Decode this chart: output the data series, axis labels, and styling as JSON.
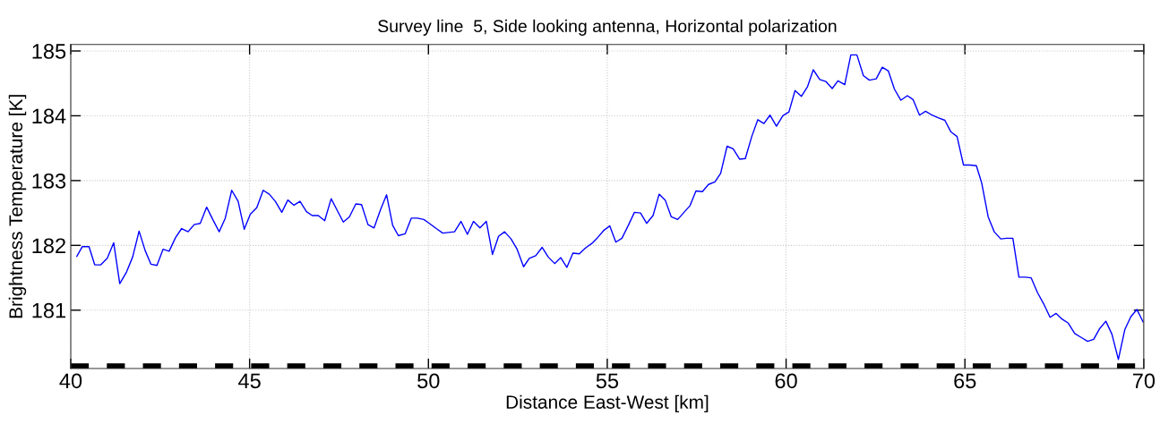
{
  "chart_data": {
    "type": "line",
    "title": "Survey line  5, Side looking antenna, Horizontal polarization",
    "xlabel": "Distance East-West [km]",
    "ylabel": "Brightness Temperature [K]",
    "xlim": [
      40,
      70
    ],
    "ylim": [
      180.1,
      185.1
    ],
    "xticks": [
      40,
      45,
      50,
      55,
      60,
      65,
      70
    ],
    "yticks": [
      181,
      182,
      183,
      184,
      185
    ],
    "grid": true,
    "marker": "none",
    "line_style": "solid",
    "ref_lines": [
      {
        "axis": "y",
        "value": 180.13,
        "color": "#000000",
        "line_style": "dashed"
      }
    ],
    "series": [
      {
        "color": "#0000ff",
        "x": [
          40.17,
          40.32,
          40.51,
          40.67,
          40.84,
          41.02,
          41.2,
          41.37,
          41.56,
          41.73,
          41.91,
          42.08,
          42.24,
          42.41,
          42.58,
          42.75,
          42.93,
          43.1,
          43.28,
          43.45,
          43.62,
          43.8,
          43.97,
          44.15,
          44.32,
          44.5,
          44.68,
          44.85,
          45.02,
          45.2,
          45.38,
          45.55,
          45.72,
          45.9,
          46.07,
          46.24,
          46.41,
          46.59,
          46.75,
          46.92,
          47.1,
          47.28,
          47.45,
          47.62,
          47.79,
          47.97,
          48.13,
          48.31,
          48.48,
          48.66,
          48.83,
          49.0,
          49.16,
          49.35,
          49.52,
          49.69,
          49.87,
          50.0,
          50.22,
          50.4,
          50.73,
          50.91,
          51.09,
          51.26,
          51.44,
          51.62,
          51.79,
          51.96,
          52.13,
          52.31,
          52.48,
          52.66,
          52.82,
          53.0,
          53.18,
          53.35,
          53.53,
          53.7,
          53.87,
          54.04,
          54.22,
          54.39,
          54.57,
          54.73,
          54.9,
          55.07,
          55.24,
          55.41,
          55.59,
          55.76,
          55.93,
          56.1,
          56.28,
          56.45,
          56.62,
          56.79,
          56.97,
          57.13,
          57.31,
          57.48,
          57.66,
          57.83,
          58.01,
          58.17,
          58.35,
          58.52,
          58.7,
          58.86,
          59.04,
          59.21,
          59.38,
          59.55,
          59.73,
          59.91,
          60.08,
          60.25,
          60.43,
          60.6,
          60.76,
          60.94,
          61.11,
          61.29,
          61.45,
          61.64,
          61.81,
          61.98,
          62.16,
          62.33,
          62.52,
          62.69,
          62.86,
          63.03,
          63.21,
          63.39,
          63.55,
          63.73,
          63.9,
          64.08,
          64.25,
          64.44,
          64.61,
          64.78,
          64.96,
          65.13,
          65.32,
          65.47,
          65.65,
          65.82,
          66.0,
          66.17,
          66.34,
          66.51,
          66.69,
          66.85,
          67.03,
          67.2,
          67.38,
          67.55,
          67.72,
          67.89,
          68.07,
          68.25,
          68.43,
          68.6,
          68.76,
          68.94,
          69.11,
          69.29,
          69.47,
          69.64,
          69.81,
          69.98
        ],
        "values": [
          181.83,
          181.98,
          181.98,
          181.7,
          181.7,
          181.8,
          182.04,
          181.41,
          181.59,
          181.82,
          182.22,
          181.92,
          181.71,
          181.69,
          181.94,
          181.91,
          182.12,
          182.26,
          182.21,
          182.32,
          182.34,
          182.59,
          182.4,
          182.21,
          182.42,
          182.85,
          182.68,
          182.25,
          182.48,
          182.58,
          182.85,
          182.79,
          182.68,
          182.51,
          182.7,
          182.62,
          182.68,
          182.52,
          182.46,
          182.46,
          182.38,
          182.72,
          182.54,
          182.36,
          182.44,
          182.64,
          182.63,
          182.32,
          182.27,
          182.55,
          182.78,
          182.31,
          182.15,
          182.18,
          182.42,
          182.42,
          182.4,
          182.35,
          182.26,
          182.19,
          182.21,
          182.37,
          182.17,
          182.37,
          182.27,
          182.37,
          181.86,
          182.14,
          182.21,
          182.1,
          181.94,
          181.67,
          181.8,
          181.84,
          181.97,
          181.82,
          181.72,
          181.81,
          181.66,
          181.88,
          181.87,
          181.96,
          182.03,
          182.12,
          182.23,
          182.3,
          182.05,
          182.11,
          182.31,
          182.51,
          182.5,
          182.34,
          182.46,
          182.79,
          182.7,
          182.44,
          182.4,
          182.5,
          182.61,
          182.84,
          182.83,
          182.94,
          182.98,
          183.11,
          183.53,
          183.49,
          183.33,
          183.34,
          183.68,
          183.94,
          183.88,
          184.01,
          183.84,
          184.0,
          184.06,
          184.39,
          184.3,
          184.45,
          184.71,
          184.56,
          184.53,
          184.42,
          184.54,
          184.48,
          184.94,
          184.94,
          184.62,
          184.55,
          184.57,
          184.75,
          184.69,
          184.41,
          184.24,
          184.31,
          184.25,
          184.01,
          184.07,
          184.01,
          183.97,
          183.93,
          183.75,
          183.68,
          183.24,
          183.24,
          183.23,
          182.96,
          182.44,
          182.21,
          182.1,
          182.11,
          182.11,
          181.51,
          181.51,
          181.5,
          181.27,
          181.1,
          180.89,
          180.95,
          180.86,
          180.8,
          180.64,
          180.58,
          180.52,
          180.55,
          180.71,
          180.83,
          180.63,
          180.24,
          180.7,
          180.9,
          181.01,
          180.82
        ]
      }
    ]
  }
}
